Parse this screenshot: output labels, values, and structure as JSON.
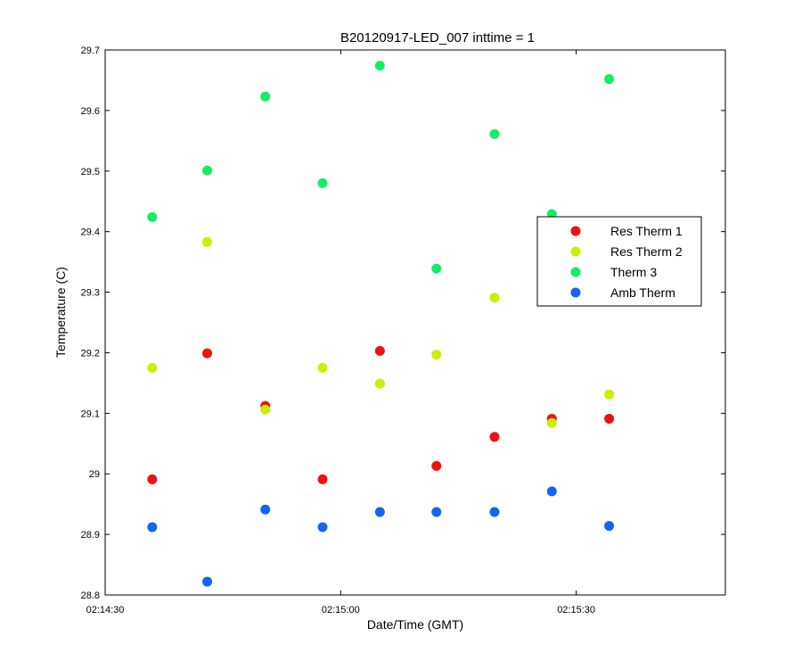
{
  "chart_data": {
    "type": "scatter",
    "title": "B20120917-LED_007 inttime = 1",
    "xlabel": "Date/Time (GMT)",
    "ylabel": "Temperature (C)",
    "x_unit": "seconds since 02:14:30",
    "xlim": [
      0,
      79
    ],
    "ylim": [
      28.8,
      29.7
    ],
    "x_ticks": [
      {
        "value": 0,
        "label": "02:14:30"
      },
      {
        "value": 30,
        "label": "02:15:00"
      },
      {
        "value": 60,
        "label": "02:15:30"
      }
    ],
    "y_ticks": [
      {
        "value": 28.8,
        "label": "28.8"
      },
      {
        "value": 28.9,
        "label": "28.9"
      },
      {
        "value": 29.0,
        "label": "29"
      },
      {
        "value": 29.1,
        "label": "29.1"
      },
      {
        "value": 29.2,
        "label": "29.2"
      },
      {
        "value": 29.3,
        "label": "29.3"
      },
      {
        "value": 29.4,
        "label": "29.4"
      },
      {
        "value": 29.5,
        "label": "29.5"
      },
      {
        "value": 29.6,
        "label": "29.6"
      },
      {
        "value": 29.7,
        "label": "29.7"
      }
    ],
    "legend_position": "right",
    "grid": false,
    "x": [
      6,
      13,
      20.4,
      27.7,
      35,
      42.2,
      49.6,
      56.9,
      64.2
    ],
    "series": [
      {
        "name": "Res Therm 1",
        "color": "#ee1111",
        "values": [
          28.991,
          29.199,
          29.112,
          28.991,
          29.203,
          29.013,
          29.061,
          29.091,
          29.091
        ]
      },
      {
        "name": "Res Therm 2",
        "color": "#ccee00",
        "values": [
          29.175,
          29.383,
          29.106,
          29.175,
          29.149,
          29.197,
          29.291,
          29.084,
          29.131
        ]
      },
      {
        "name": "Therm 3",
        "color": "#11ee66",
        "values": [
          29.424,
          29.501,
          29.623,
          29.48,
          29.674,
          29.339,
          29.561,
          29.429,
          29.652
        ]
      },
      {
        "name": "Amb Therm",
        "color": "#1166ee",
        "values": [
          28.912,
          28.822,
          28.941,
          28.912,
          28.937,
          28.937,
          28.937,
          28.971,
          28.914
        ]
      }
    ]
  }
}
